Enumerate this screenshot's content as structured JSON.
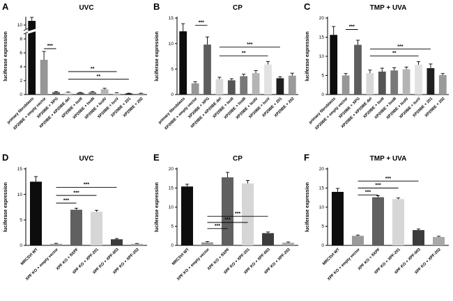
{
  "figure": {
    "background": "#ffffff",
    "axis_color": "#000000",
    "panels": [
      "A",
      "B",
      "C",
      "D",
      "E",
      "F"
    ]
  },
  "chart_data": [
    {
      "type": "bar",
      "panel_label": "A",
      "title": "UVC",
      "ylabel": "luciferase expression",
      "ylim": [
        0,
        11
      ],
      "yticks": [
        0,
        2,
        4,
        6,
        8,
        10
      ],
      "axis_break_at": 9.1,
      "grid": false,
      "categories": [
        "primary fibroblasts",
        "XP20BE + empty vector",
        "XP20BE + XPG",
        "XP20BE + XP20BE del",
        "XP20BE + IsoII",
        "XP20BE + IsoIII",
        "XP20BE + IsoIV",
        "XP20BE + IsoV",
        "XP20BE + 201",
        "XP20BE + 202"
      ],
      "values": [
        10.6,
        5.0,
        0.35,
        0.3,
        0.25,
        0.35,
        0.75,
        0.2,
        0.15,
        0.15
      ],
      "errors": [
        0.5,
        1.2,
        0.08,
        0.07,
        0.06,
        0.08,
        0.15,
        0.05,
        0.04,
        0.04
      ],
      "colors": [
        "#0d0d0d",
        "#969696",
        "#5e5e5e",
        "#d8d8d8",
        "#555555",
        "#787878",
        "#b4b4b4",
        "#e2e2e2",
        "#1f1f1f",
        "#9a9a9a"
      ],
      "significance": [
        {
          "from": 1,
          "to": 2,
          "label": "***",
          "y": 6.6
        },
        {
          "from": 3,
          "to": 7,
          "label": "**",
          "y": 3.3
        },
        {
          "from": 3,
          "to": 8,
          "label": "**",
          "y": 2.2
        }
      ]
    },
    {
      "type": "bar",
      "panel_label": "B",
      "title": "CP",
      "ylabel": "luciferase expression",
      "ylim": [
        0,
        15
      ],
      "yticks": [
        0,
        5,
        10,
        15
      ],
      "grid": false,
      "categories": [
        "primary fibroblasts",
        "XP20BE + empty vector",
        "XP20BE + XPG",
        "XP20BE + XP20BE del",
        "XP20BE + IsoII",
        "XP20BE + IsoIII",
        "XP20BE + IsoIV",
        "XP20BE + IsoV",
        "XP20BE + 201",
        "XP20BE + 202"
      ],
      "values": [
        12.4,
        2.2,
        9.8,
        3.0,
        2.8,
        3.6,
        4.2,
        5.9,
        3.2,
        3.7
      ],
      "errors": [
        1.5,
        0.3,
        1.5,
        0.4,
        0.3,
        0.4,
        0.5,
        0.6,
        0.3,
        0.5
      ],
      "colors": [
        "#0d0d0d",
        "#969696",
        "#5e5e5e",
        "#d8d8d8",
        "#555555",
        "#787878",
        "#b4b4b4",
        "#e2e2e2",
        "#1f1f1f",
        "#9a9a9a"
      ],
      "significance": [
        {
          "from": 1,
          "to": 2,
          "label": "***",
          "y": 13.6
        },
        {
          "from": 3,
          "to": 8,
          "label": "***",
          "y": 9.3
        },
        {
          "from": 3,
          "to": 7,
          "label": "**",
          "y": 7.6
        }
      ]
    },
    {
      "type": "bar",
      "panel_label": "C",
      "title": "TMP + UVA",
      "ylabel": "luciferase expression",
      "ylim": [
        0,
        20
      ],
      "yticks": [
        0,
        5,
        10,
        15,
        20
      ],
      "grid": false,
      "categories": [
        "primary fibroblasts",
        "XP20BE + empty vector",
        "XP20BE + XPG",
        "XP20BE + XP20BE del",
        "XP20BE + IsoII",
        "XP20BE + IsoIII",
        "XP20BE + IsoIV",
        "XP20BE + IsoV",
        "XP20BE + 201",
        "XP20BE + 202"
      ],
      "values": [
        15.6,
        5.0,
        13.0,
        5.6,
        6.0,
        6.3,
        6.6,
        7.8,
        6.9,
        5.1
      ],
      "errors": [
        2.2,
        0.5,
        1.2,
        0.8,
        0.9,
        0.7,
        0.6,
        0.8,
        1.1,
        0.4
      ],
      "colors": [
        "#0d0d0d",
        "#969696",
        "#5e5e5e",
        "#d8d8d8",
        "#555555",
        "#787878",
        "#b4b4b4",
        "#e2e2e2",
        "#1f1f1f",
        "#9a9a9a"
      ],
      "significance": [
        {
          "from": 1,
          "to": 2,
          "label": "***",
          "y": 17.0
        },
        {
          "from": 3,
          "to": 8,
          "label": "***",
          "y": 11.9
        },
        {
          "from": 3,
          "to": 7,
          "label": "**",
          "y": 10.1
        }
      ]
    },
    {
      "type": "bar",
      "panel_label": "D",
      "title": "UVC",
      "ylabel": "luciferase expression",
      "ylim": [
        0,
        15
      ],
      "yticks": [
        0,
        5,
        10,
        15
      ],
      "grid": false,
      "categories": [
        "MRC5VI WT",
        "XPF KO + empty vector",
        "XPF KO + flXPF",
        "XPF KO + XPF-201",
        "XPF KO + XPF-003",
        "XPF KO + XPF-202"
      ],
      "values": [
        12.5,
        0.3,
        7.0,
        6.6,
        1.2,
        0.3
      ],
      "errors": [
        1.0,
        0.1,
        0.3,
        0.3,
        0.15,
        0.08
      ],
      "colors": [
        "#0d0d0d",
        "#9a9a9a",
        "#606060",
        "#d6d6d6",
        "#3c3c3c",
        "#a8a8a8"
      ],
      "significance": [
        {
          "from": 1,
          "to": 2,
          "label": "***",
          "y": 8.3
        },
        {
          "from": 1,
          "to": 3,
          "label": "***",
          "y": 9.8
        },
        {
          "from": 1,
          "to": 4,
          "label": "***",
          "y": 11.4
        }
      ]
    },
    {
      "type": "bar",
      "panel_label": "E",
      "title": "CP",
      "ylabel": "luciferase expression",
      "ylim": [
        0,
        20
      ],
      "yticks": [
        0,
        5,
        10,
        15,
        20
      ],
      "grid": false,
      "categories": [
        "MRC5VI WT",
        "XPF KO + empty vector",
        "XPF KO + flXPF",
        "XPF KO + XPF-201",
        "XPF KO + XPF-003",
        "XPF KO + XPF-202"
      ],
      "values": [
        15.4,
        0.8,
        17.8,
        16.2,
        3.2,
        0.7
      ],
      "errors": [
        0.6,
        0.2,
        1.3,
        0.8,
        0.3,
        0.2
      ],
      "colors": [
        "#0d0d0d",
        "#9a9a9a",
        "#606060",
        "#d6d6d6",
        "#3c3c3c",
        "#a8a8a8"
      ],
      "significance": [
        {
          "from": 1,
          "to": 2,
          "label": "***",
          "y": 4.4
        },
        {
          "from": 1,
          "to": 3,
          "label": "***",
          "y": 6.0
        },
        {
          "from": 1,
          "to": 4,
          "label": "***",
          "y": 7.6
        }
      ]
    },
    {
      "type": "bar",
      "panel_label": "F",
      "title": "TMP + UVA",
      "ylabel": "luciferase expression",
      "ylim": [
        0,
        20
      ],
      "yticks": [
        0,
        5,
        10,
        15,
        20
      ],
      "grid": false,
      "categories": [
        "MRC5VI WT",
        "XPF KO + empty vector",
        "XPF KO + flXPF",
        "XPF KO + XPF-201",
        "XPF KO + XPF-003",
        "XPF KO + XPF-202"
      ],
      "values": [
        14.0,
        2.5,
        12.6,
        12.1,
        4.0,
        2.2
      ],
      "errors": [
        0.9,
        0.2,
        0.4,
        0.3,
        0.3,
        0.2
      ],
      "colors": [
        "#0d0d0d",
        "#9a9a9a",
        "#606060",
        "#d6d6d6",
        "#3c3c3c",
        "#a8a8a8"
      ],
      "significance": [
        {
          "from": 1,
          "to": 2,
          "label": "***",
          "y": 13.2
        },
        {
          "from": 1,
          "to": 3,
          "label": "***",
          "y": 15.0
        },
        {
          "from": 1,
          "to": 4,
          "label": "***",
          "y": 16.8
        }
      ]
    }
  ]
}
